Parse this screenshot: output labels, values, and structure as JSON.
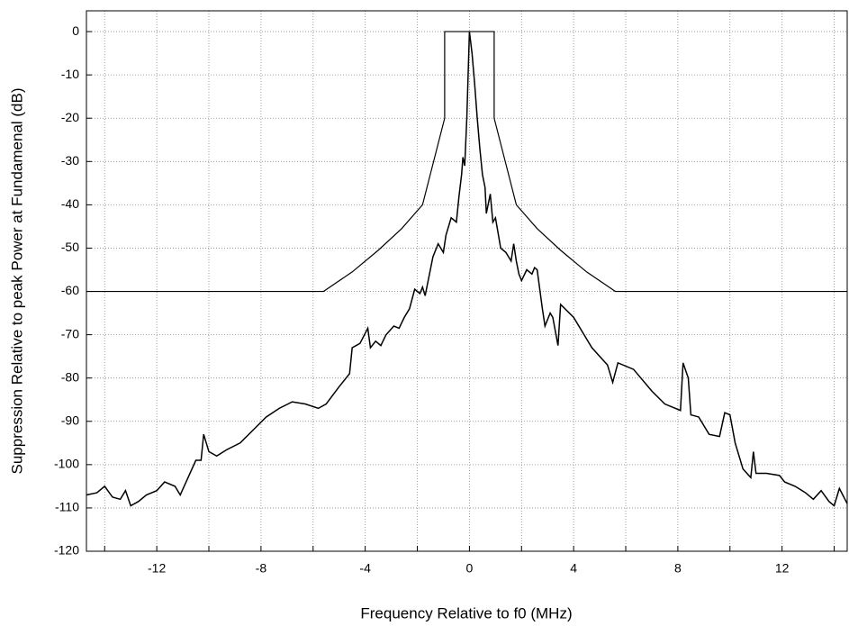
{
  "chart_data": {
    "type": "line",
    "x_label": "Frequency Relative to f0 (MHz)",
    "y_label": "Suppression Relative to peak Power at Fundamenal (dB)",
    "xlim": [
      -14.7,
      14.5
    ],
    "ylim": [
      -120,
      4.8
    ],
    "xticks": [
      -12,
      -8,
      -4,
      0,
      4,
      8,
      12
    ],
    "x_minor_ticks": [
      -14,
      -10,
      -6,
      -2,
      2,
      6,
      10,
      14
    ],
    "yticks": [
      0,
      -10,
      -20,
      -30,
      -40,
      -50,
      -60,
      -70,
      -80,
      -90,
      -100,
      -110,
      -120
    ],
    "grid": true,
    "series": [
      {
        "color": "#000000",
        "x": [
          -14.7,
          -5.6,
          -4.5,
          -3.5,
          -2.6,
          -1.8,
          -0.95,
          -0.95,
          0.95,
          0.95,
          1.8,
          2.6,
          3.5,
          4.5,
          5.6,
          14.5
        ],
        "values": [
          -60,
          -60,
          -55.5,
          -50.5,
          -45.5,
          -40,
          -20,
          0,
          0,
          -20,
          -40,
          -45.5,
          -50.5,
          -55.5,
          -60,
          -60
        ]
      },
      {
        "color": "#000000",
        "x": [
          -14.7,
          -14.3,
          -14.0,
          -13.7,
          -13.4,
          -13.2,
          -13.0,
          -12.7,
          -12.4,
          -12.0,
          -11.7,
          -11.3,
          -11.1,
          -10.8,
          -10.5,
          -10.3,
          -10.2,
          -10.0,
          -9.7,
          -9.3,
          -8.8,
          -8.3,
          -7.8,
          -7.3,
          -6.8,
          -6.3,
          -5.8,
          -5.5,
          -5.0,
          -4.6,
          -4.5,
          -4.2,
          -3.9,
          -3.8,
          -3.6,
          -3.4,
          -3.2,
          -2.9,
          -2.7,
          -2.5,
          -2.3,
          -2.1,
          -1.9,
          -1.8,
          -1.7,
          -1.5,
          -1.4,
          -1.2,
          -1.0,
          -0.9,
          -0.7,
          -0.5,
          -0.4,
          -0.3,
          -0.25,
          -0.18,
          -0.1,
          0,
          0.1,
          0.2,
          0.3,
          0.4,
          0.5,
          0.6,
          0.65,
          0.8,
          0.9,
          1.0,
          1.2,
          1.4,
          1.6,
          1.7,
          1.8,
          1.9,
          2.0,
          2.2,
          2.4,
          2.5,
          2.6,
          2.8,
          2.9,
          3.1,
          3.2,
          3.4,
          3.5,
          4.0,
          4.7,
          5.3,
          5.5,
          5.7,
          6.3,
          7.0,
          7.5,
          7.9,
          8.1,
          8.2,
          8.4,
          8.5,
          8.8,
          9.2,
          9.6,
          9.8,
          10.0,
          10.2,
          10.5,
          10.8,
          10.9,
          11.0,
          11.4,
          11.9,
          12.1,
          12.5,
          12.9,
          13.2,
          13.5,
          13.8,
          14.0,
          14.2,
          14.5
        ],
        "values": [
          -107,
          -106.5,
          -105,
          -107.5,
          -108,
          -106,
          -109.5,
          -108.5,
          -107,
          -106,
          -104,
          -105,
          -107,
          -103,
          -99,
          -99,
          -93,
          -97,
          -98,
          -96.5,
          -95,
          -92,
          -89,
          -87,
          -85.5,
          -86,
          -87,
          -86,
          -82,
          -79,
          -73,
          -72,
          -68.5,
          -73,
          -71.5,
          -72.5,
          -70,
          -68,
          -68.5,
          -66,
          -64,
          -59.5,
          -60.5,
          -59,
          -61,
          -55,
          -52,
          -49,
          -51,
          -47,
          -43,
          -44,
          -38,
          -33,
          -29,
          -31,
          -20,
          0,
          -5,
          -12,
          -20,
          -27,
          -33,
          -36,
          -42,
          -37.5,
          -44,
          -43,
          -50,
          -51,
          -53,
          -49,
          -53,
          -56,
          -57.5,
          -55,
          -56,
          -54.5,
          -55,
          -64,
          -68,
          -65,
          -66,
          -72.5,
          -63,
          -66,
          -73,
          -77,
          -81,
          -76.5,
          -78,
          -83,
          -86,
          -87,
          -87.5,
          -76.5,
          -80,
          -88.5,
          -89,
          -93,
          -93.5,
          -88,
          -88.5,
          -95,
          -101,
          -103,
          -97,
          -102,
          -102,
          -102.5,
          -104,
          -105,
          -106.5,
          -108,
          -106,
          -108.5,
          -109.5,
          -105.5,
          -109
        ]
      }
    ]
  }
}
